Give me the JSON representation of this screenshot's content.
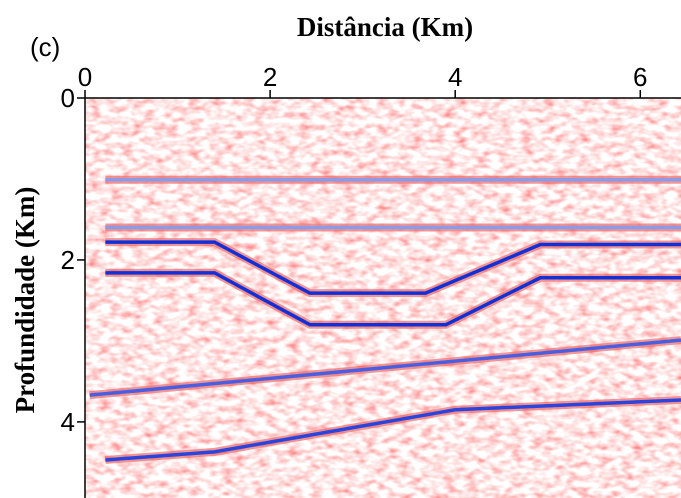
{
  "chart_data": {
    "type": "seismic",
    "panel_label": "(c)",
    "xlabel": "Distância (Km)",
    "ylabel": "Profundidade (Km)",
    "xlim": [
      0,
      6.44
    ],
    "xticks": [
      0,
      2,
      4,
      6
    ],
    "ylim": [
      0,
      4.94
    ],
    "yticks": [
      0,
      2,
      4
    ],
    "y_inverted": true,
    "series": [
      {
        "color": "#8a9be8",
        "x": [
          0.22,
          6.44
        ],
        "values": [
          1.01,
          1.01
        ]
      },
      {
        "color": "#8a9be8",
        "x": [
          0.22,
          6.44
        ],
        "values": [
          1.6,
          1.6
        ]
      },
      {
        "color": "#1030d8",
        "x": [
          0.22,
          1.4,
          2.43,
          3.68,
          4.92,
          6.44
        ],
        "values": [
          1.78,
          1.78,
          2.41,
          2.41,
          1.81,
          1.81
        ]
      },
      {
        "color": "#1030d8",
        "x": [
          0.22,
          1.4,
          2.43,
          3.9,
          4.92,
          6.44
        ],
        "values": [
          2.16,
          2.16,
          2.8,
          2.8,
          2.22,
          2.22
        ]
      },
      {
        "color": "#4a5ee0",
        "x": [
          0.05,
          6.44
        ],
        "values": [
          3.67,
          2.99
        ]
      },
      {
        "color": "#2a44dc",
        "x": [
          0.22,
          1.4,
          4.0,
          6.44
        ],
        "values": [
          4.47,
          4.37,
          3.85,
          3.73
        ]
      }
    ]
  }
}
